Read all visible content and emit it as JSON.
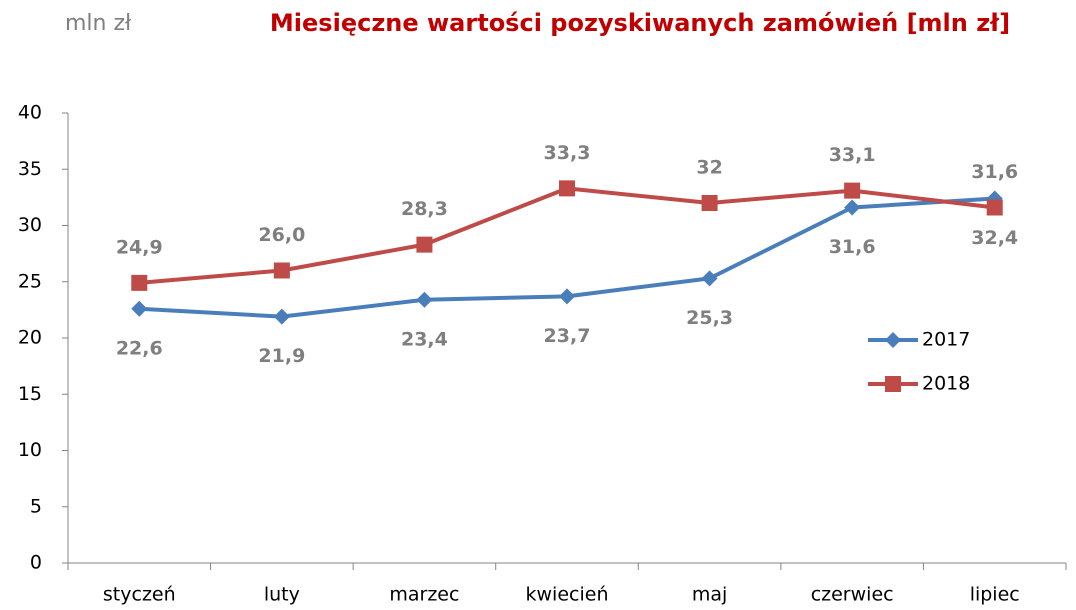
{
  "chart_data": {
    "type": "line",
    "title": "Miesięczne wartości pozyskiwanych zamówień [mln zł]",
    "y_label": "mln zł",
    "categories": [
      "styczeń",
      "luty",
      "marzec",
      "kwiecień",
      "maj",
      "czerwiec",
      "lipiec"
    ],
    "series": [
      {
        "name": "2017",
        "color": "#4a7ebb",
        "marker": "diamond",
        "label_position": "below",
        "values": [
          22.6,
          21.9,
          23.4,
          23.7,
          25.3,
          31.6,
          32.4
        ],
        "value_labels": [
          "22,6",
          "21,9",
          "23,4",
          "23,7",
          "25,3",
          "31,6",
          "32,4"
        ]
      },
      {
        "name": "2018",
        "color": "#be4b48",
        "marker": "square",
        "label_position": "above",
        "values": [
          24.9,
          26.0,
          28.3,
          33.3,
          32,
          33.1,
          31.6
        ],
        "value_labels": [
          "24,9",
          "26,0",
          "28,3",
          "33,3",
          "32",
          "33,1",
          "31,6"
        ]
      }
    ],
    "ylim": [
      0,
      40
    ],
    "yticks": [
      0,
      5,
      10,
      15,
      20,
      25,
      30,
      35,
      40
    ],
    "grid": false,
    "legend": "right"
  }
}
